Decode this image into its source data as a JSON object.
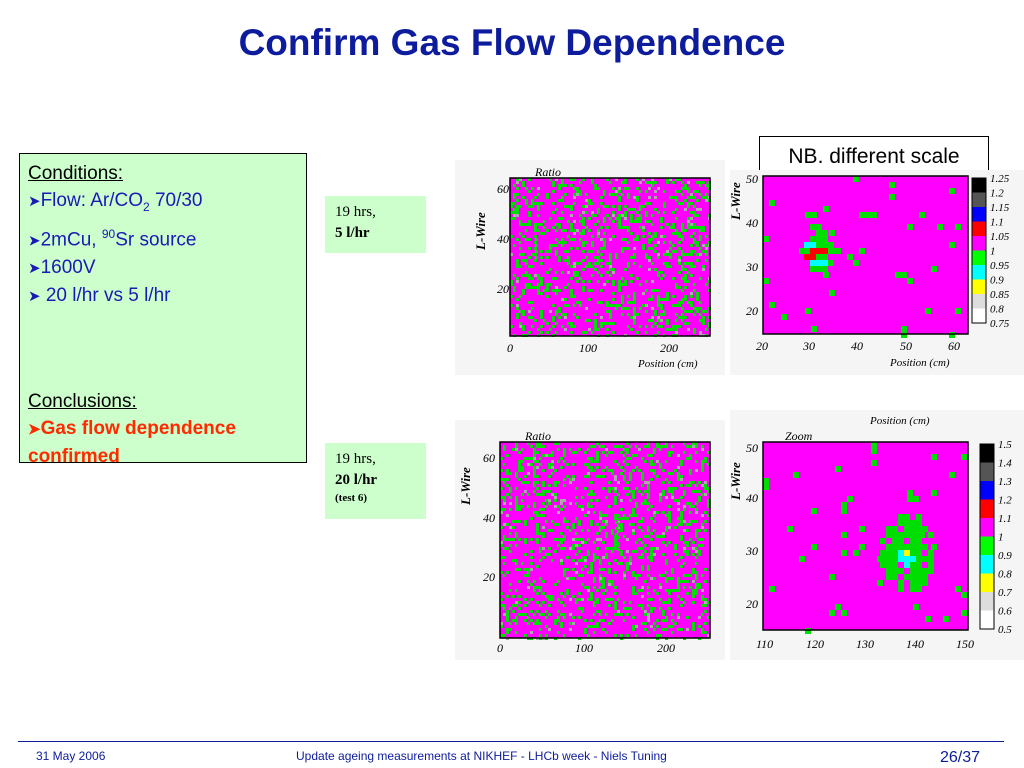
{
  "title": "Confirm Gas Flow Dependence",
  "conditions": {
    "header": "Conditions:",
    "items": [
      {
        "prefix": "Flow: Ar/CO",
        "sub": "2",
        "suffix": " 70/30"
      },
      {
        "prefix": "2mCu, ",
        "sup": "90",
        "suffix": "Sr source"
      },
      {
        "text": "1600V"
      },
      {
        "text": " 20 l/hr vs 5 l/hr"
      }
    ],
    "conclusions_header": "Conclusions:",
    "conclusion_text": "Gas flow dependence confirmed"
  },
  "tags": {
    "top": {
      "line1": "19 hrs,",
      "line2": "5 l/hr"
    },
    "bottom": {
      "line1": "19 hrs,",
      "line2": "20 l/hr",
      "line3": "(test 6)"
    }
  },
  "note": "NB. different scale",
  "plots": {
    "top_left": {
      "title": "Ratio",
      "ylabel": "L-Wire",
      "xlabel": "Position (cm)",
      "xticks": [
        "0",
        "100",
        "200"
      ],
      "yticks": [
        "60",
        "40",
        "20"
      ]
    },
    "top_right": {
      "ylabel": "L-Wire",
      "xlabel": "Position (cm)",
      "xticks": [
        "20",
        "30",
        "40",
        "50",
        "60"
      ],
      "yticks": [
        "50",
        "40",
        "30",
        "20"
      ],
      "scale": [
        "1.25",
        "1.2",
        "1.15",
        "1.1",
        "1.05",
        "1",
        "0.95",
        "0.9",
        "0.85",
        "0.8",
        "0.75"
      ]
    },
    "bottom_left": {
      "title": "Ratio",
      "ylabel": "L-Wire",
      "xticks": [
        "0",
        "100",
        "200"
      ],
      "yticks": [
        "60",
        "40",
        "20"
      ]
    },
    "bottom_right": {
      "title": "Zoom",
      "ylabel": "L-Wire",
      "xlabel_fragment": "Position (cm)",
      "xticks": [
        "110",
        "120",
        "130",
        "140",
        "150"
      ],
      "yticks": [
        "50",
        "40",
        "30",
        "20"
      ],
      "scale": [
        "1.5",
        "1.4",
        "1.3",
        "1.2",
        "1.1",
        "1",
        "0.9",
        "0.8",
        "0.7",
        "0.6",
        "0.5"
      ]
    }
  },
  "colors": {
    "title": "#0d1c9c",
    "box_bg": "#ccffcc",
    "magenta": "#ff00ff",
    "green": "#00dd00",
    "cyan": "#00ffff",
    "red": "#ff0000",
    "yellow": "#ffff00",
    "conclusion": "#ff2a00"
  },
  "scale_colors": [
    "#000000",
    "#555555",
    "#0000ff",
    "#ff0000",
    "#ff00ff",
    "#00ff00",
    "#00ffff",
    "#ffff00",
    "#dddddd",
    "#ffffff"
  ],
  "footer": {
    "date": "31 May 2006",
    "center": "Update ageing measurements at NIKHEF - LHCb week - Niels Tuning",
    "page": "26/37"
  }
}
